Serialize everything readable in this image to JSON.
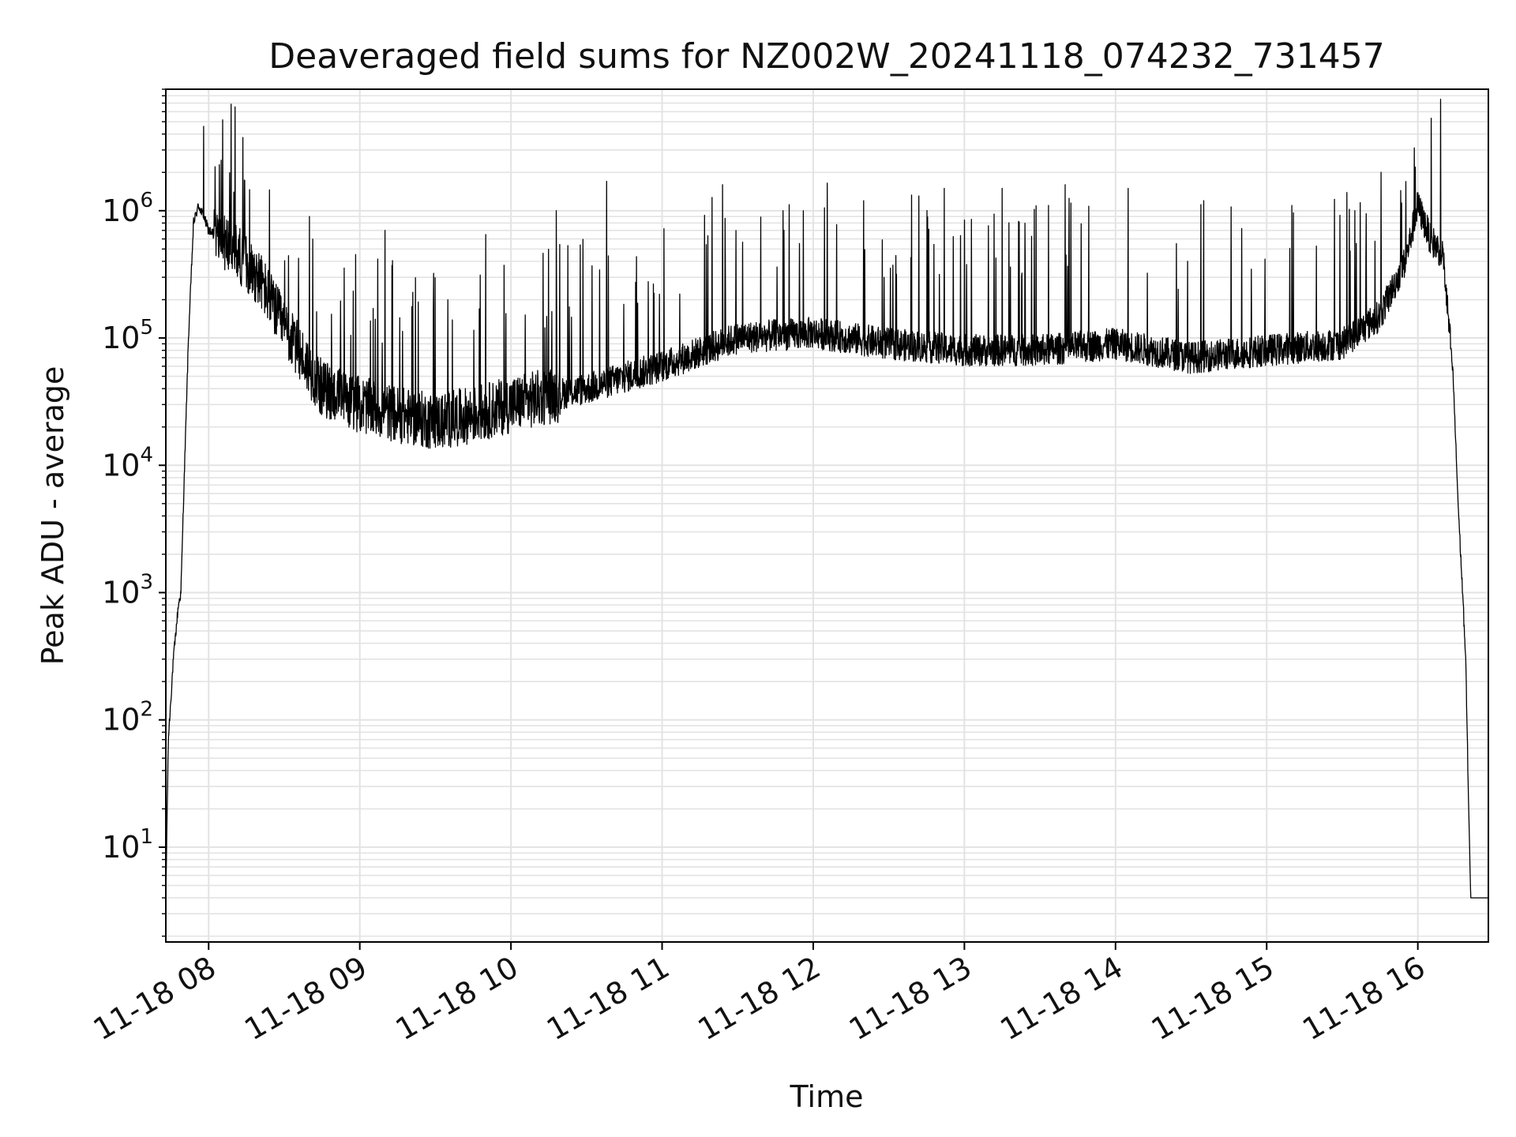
{
  "chart_data": {
    "type": "line",
    "title": "Deaveraged field sums for NZ002W_20241118_074232_731457",
    "xlabel": "Time",
    "ylabel": "Peak ADU - average",
    "yscale": "log",
    "grid": true,
    "legend": "none",
    "xlim": [
      "2024-11-18 07:43",
      "2024-11-18 16:28"
    ],
    "ylim": [
      1.8,
      9000000
    ],
    "x_ticks": [
      "11-18 08",
      "11-18 09",
      "11-18 10",
      "11-18 11",
      "11-18 12",
      "11-18 13",
      "11-18 14",
      "11-18 15",
      "11-18 16"
    ],
    "y_ticks": [
      {
        "base": "10",
        "exp": "1",
        "value": 10
      },
      {
        "base": "10",
        "exp": "2",
        "value": 100
      },
      {
        "base": "10",
        "exp": "3",
        "value": 1000
      },
      {
        "base": "10",
        "exp": "4",
        "value": 10000
      },
      {
        "base": "10",
        "exp": "5",
        "value": 100000
      },
      {
        "base": "10",
        "exp": "6",
        "value": 1000000
      }
    ],
    "line_color": "#000000",
    "series": [
      {
        "x": [
          "2024-11-18 07:43",
          "2024-11-18 07:44",
          "2024-11-18 07:46",
          "2024-11-18 07:48",
          "2024-11-18 07:49",
          "2024-11-18 07:50",
          "2024-11-18 07:52",
          "2024-11-18 07:54",
          "2024-11-18 07:56",
          "2024-11-18 07:58",
          "2024-11-18 08:00",
          "2024-11-18 08:10",
          "2024-11-18 08:20",
          "2024-11-18 08:30",
          "2024-11-18 08:45",
          "2024-11-18 09:00",
          "2024-11-18 09:15",
          "2024-11-18 09:30",
          "2024-11-18 09:45",
          "2024-11-18 10:00",
          "2024-11-18 10:15",
          "2024-11-18 10:30",
          "2024-11-18 11:00",
          "2024-11-18 11:30",
          "2024-11-18 12:00",
          "2024-11-18 12:30",
          "2024-11-18 13:00",
          "2024-11-18 13:30",
          "2024-11-18 14:00",
          "2024-11-18 14:30",
          "2024-11-18 15:00",
          "2024-11-18 15:30",
          "2024-11-18 15:45",
          "2024-11-18 15:55",
          "2024-11-18 16:00",
          "2024-11-18 16:05",
          "2024-11-18 16:10",
          "2024-11-18 16:14",
          "2024-11-18 16:16",
          "2024-11-18 16:18",
          "2024-11-18 16:19",
          "2024-11-18 16:20",
          "2024-11-18 16:21",
          "2024-11-18 16:28"
        ],
        "y": [
          4,
          70,
          300,
          800,
          1000,
          5000,
          100000,
          800000,
          1100000,
          900000,
          700000,
          500000,
          300000,
          120000,
          40000,
          30000,
          25000,
          22000,
          25000,
          30000,
          35000,
          40000,
          60000,
          100000,
          110000,
          90000,
          80000,
          80000,
          90000,
          70000,
          80000,
          90000,
          150000,
          400000,
          1100000,
          600000,
          450000,
          50000,
          5000,
          800,
          300,
          30,
          4,
          4
        ],
        "spikes": [
          {
            "x": "2024-11-18 07:58",
            "y": 4600000
          },
          {
            "x": "2024-11-18 08:10",
            "y": 1400000
          },
          {
            "x": "2024-11-18 08:40",
            "y": 900000
          },
          {
            "x": "2024-11-18 09:10",
            "y": 700000
          },
          {
            "x": "2024-11-18 09:50",
            "y": 650000
          },
          {
            "x": "2024-11-18 10:18",
            "y": 1000000
          },
          {
            "x": "2024-11-18 10:38",
            "y": 1700000
          },
          {
            "x": "2024-11-18 11:24",
            "y": 1600000
          },
          {
            "x": "2024-11-18 11:48",
            "y": 1000000
          },
          {
            "x": "2024-11-18 12:20",
            "y": 1200000
          },
          {
            "x": "2024-11-18 12:52",
            "y": 1500000
          },
          {
            "x": "2024-11-18 13:15",
            "y": 1500000
          },
          {
            "x": "2024-11-18 13:40",
            "y": 1600000
          },
          {
            "x": "2024-11-18 14:05",
            "y": 1500000
          },
          {
            "x": "2024-11-18 14:35",
            "y": 1200000
          },
          {
            "x": "2024-11-18 15:10",
            "y": 1100000
          },
          {
            "x": "2024-11-18 15:35",
            "y": 1000000
          },
          {
            "x": "2024-11-18 15:59",
            "y": 2200000
          }
        ]
      }
    ]
  }
}
